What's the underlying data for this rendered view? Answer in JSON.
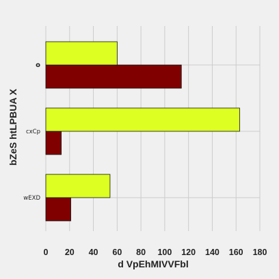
{
  "chart_data": {
    "type": "bar",
    "orientation": "horizontal",
    "categories": [
      "wEXD",
      "cxCp",
      "o"
    ],
    "series": [
      {
        "values": [
          21,
          13,
          114
        ],
        "color": "#800000"
      },
      {
        "values": [
          54,
          163,
          60
        ],
        "color": "#ddff22"
      }
    ],
    "xlabel": "d VpEhMIVVFbl",
    "ylabel": "bZeS htLPBUA X",
    "xlim": [
      0,
      180
    ],
    "xticks": [
      "0",
      "20",
      "40",
      "60",
      "80",
      "100",
      "120",
      "140",
      "160",
      "180"
    ],
    "grid": true
  }
}
